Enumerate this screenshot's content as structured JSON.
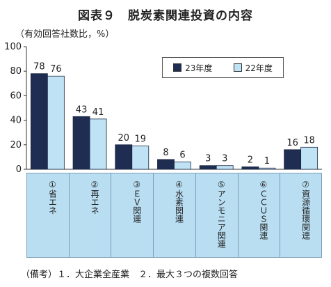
{
  "chart_data": {
    "type": "bar",
    "title": "図表９　脱炭素関連投資の内容",
    "ylabel": "（有効回答社数比，%）",
    "ylim": [
      0,
      100
    ],
    "yticks": [
      0,
      20,
      40,
      60,
      80,
      100
    ],
    "categories": [
      "①省エネ",
      "②再エネ",
      "③ＥＶ関連",
      "④水素関連",
      "⑤アンモニア関連",
      "⑥ＣＣＵＳ関連",
      "⑦資源循環関連"
    ],
    "series": [
      {
        "name": "23年度",
        "values": [
          78,
          43,
          20,
          8,
          3,
          2,
          16
        ],
        "color": "#1f2d52"
      },
      {
        "name": "22年度",
        "values": [
          76,
          41,
          19,
          6,
          3,
          1,
          18
        ],
        "color": "#bfe3f5"
      }
    ],
    "legend_position": "top-right",
    "category_band_color": "#b9def2",
    "grid": false
  },
  "note": "（備考）１．大企業全産業　２．最大３つの複数回答"
}
